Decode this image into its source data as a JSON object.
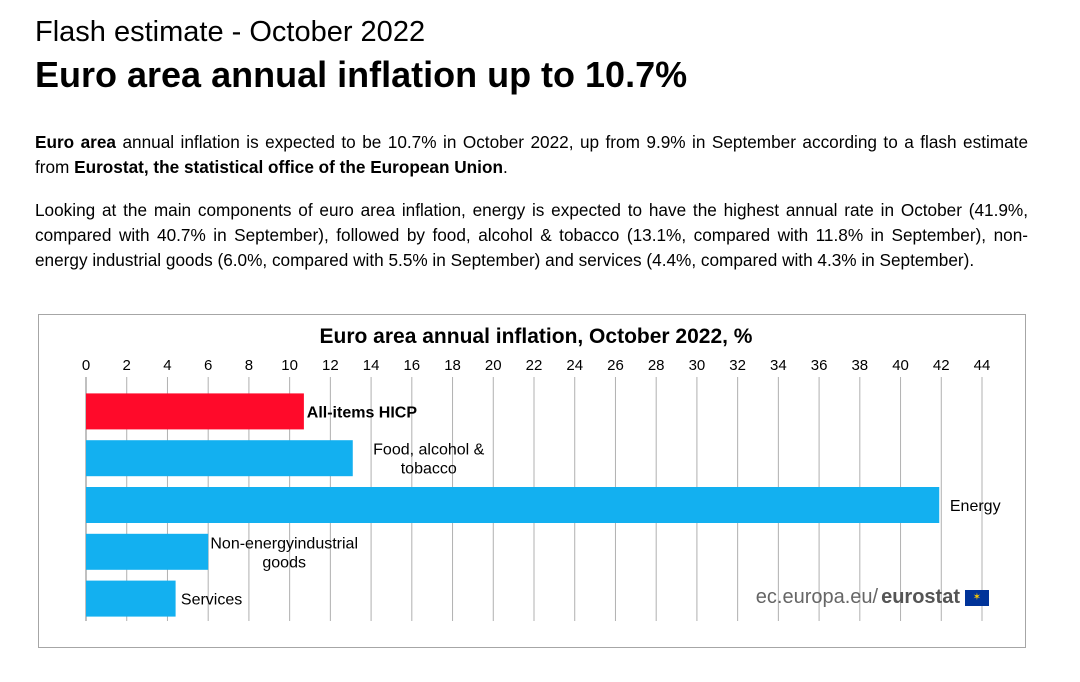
{
  "header": {
    "subtitle": "Flash estimate - October 2022",
    "title": "Euro area annual inflation up to 10.7%"
  },
  "paragraph1": {
    "bold1": "Euro area",
    "text1": " annual inflation is expected to be 10.7% in October 2022, up from 9.9% in September according to a flash estimate from ",
    "bold2": "Eurostat, the statistical office of the European Union",
    "text2": "."
  },
  "paragraph2": {
    "text": "Looking at the main components of euro area inflation, energy is expected to have the highest annual rate in October (41.9%, compared with 40.7% in September), followed by food, alcohol & tobacco (13.1%, compared with 11.8% in September), non-energy industrial goods (6.0%, compared with 5.5% in September) and services (4.4%, compared with 4.3% in September)."
  },
  "source": {
    "domain": "ec.europa.eu/",
    "brand": "eurostat",
    "flag_icon": "eu-flag-icon"
  },
  "colors": {
    "highlight": "#ff0a2a",
    "bar": "#13b0f0",
    "grid": "#b0b0b0"
  },
  "chart_data": {
    "type": "bar",
    "orientation": "horizontal",
    "title": "Euro area annual inflation, October 2022, %",
    "xlim": [
      0,
      44
    ],
    "ticks": [
      0,
      2,
      4,
      6,
      8,
      10,
      12,
      14,
      16,
      18,
      20,
      22,
      24,
      26,
      28,
      30,
      32,
      34,
      36,
      38,
      40,
      42,
      44
    ],
    "grid": true,
    "categories": [
      [
        "All-items HICP"
      ],
      [
        "Food, alcohol &",
        "tobacco"
      ],
      [
        "Energy"
      ],
      [
        "Non-energyindustrial",
        "goods"
      ],
      [
        "Services"
      ]
    ],
    "values": [
      10.7,
      13.1,
      41.9,
      6.0,
      4.4
    ],
    "highlight": [
      true,
      false,
      false,
      false,
      false
    ]
  }
}
